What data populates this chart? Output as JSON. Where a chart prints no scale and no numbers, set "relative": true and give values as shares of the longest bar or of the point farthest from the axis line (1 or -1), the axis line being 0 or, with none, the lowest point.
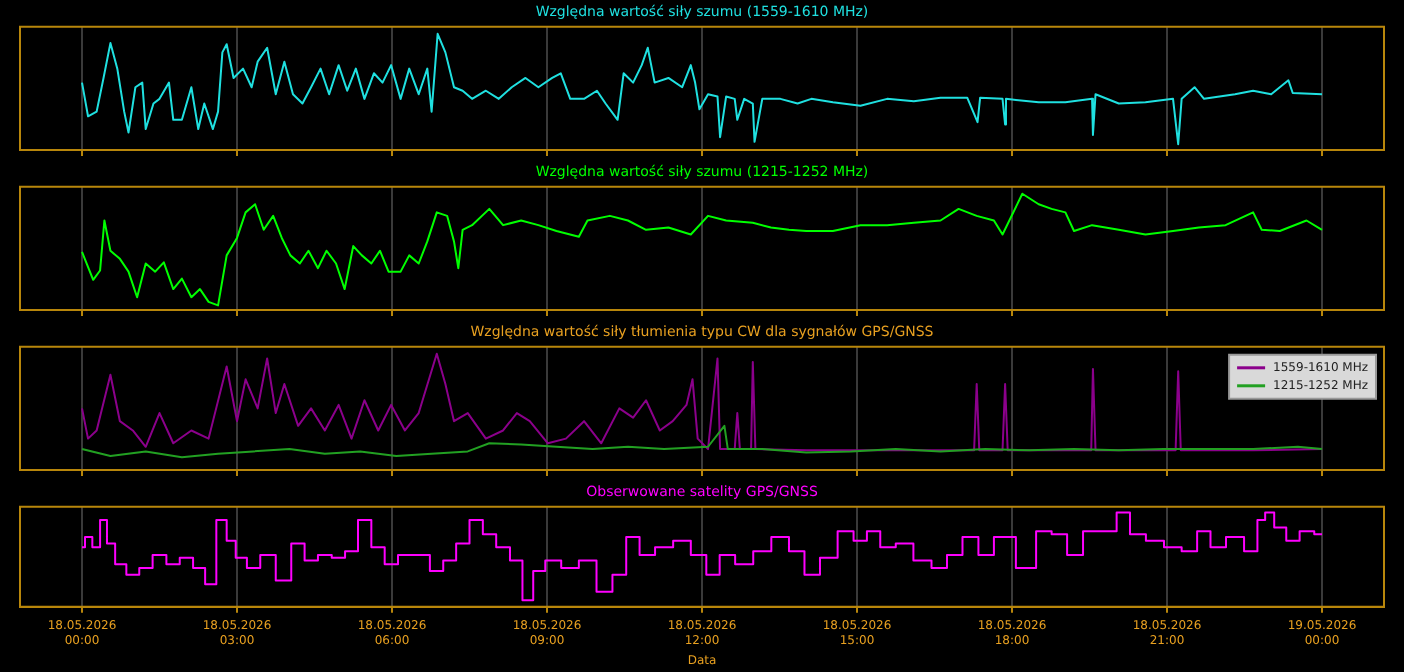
{
  "chart_data": [
    {
      "type": "line",
      "title": "Względna wartość siły szumu (1559-1610 MHz)",
      "relative": true,
      "grid": "x",
      "tick_labels": false,
      "marker": "none",
      "xlim": [
        "2026-05-17T22:48",
        "2026-05-19T01:12"
      ],
      "xticks": [
        {
          "value": "2026-05-18T00:00",
          "label": null
        },
        {
          "value": "2026-05-18T03:00",
          "label": null
        },
        {
          "value": "2026-05-18T06:00",
          "label": null
        },
        {
          "value": "2026-05-18T09:00",
          "label": null
        },
        {
          "value": "2026-05-18T12:00",
          "label": null
        },
        {
          "value": "2026-05-18T15:00",
          "label": null
        },
        {
          "value": "2026-05-18T18:00",
          "label": null
        },
        {
          "value": "2026-05-18T21:00",
          "label": null
        },
        {
          "value": "2026-05-19T00:00",
          "label": null
        }
      ],
      "series": [
        {
          "color": "#1fe0e0",
          "x": [
            "2026-05-18T00:00",
            "2026-05-18T00:07",
            "2026-05-18T00:17",
            "2026-05-18T00:25",
            "2026-05-18T00:33",
            "2026-05-18T00:41",
            "2026-05-18T00:49",
            "2026-05-18T00:54",
            "2026-05-18T01:02",
            "2026-05-18T01:10",
            "2026-05-18T01:14",
            "2026-05-18T01:23",
            "2026-05-18T01:30",
            "2026-05-18T01:41",
            "2026-05-18T01:46",
            "2026-05-18T01:56",
            "2026-05-18T02:07",
            "2026-05-18T02:15",
            "2026-05-18T02:22",
            "2026-05-18T02:32",
            "2026-05-18T02:38",
            "2026-05-18T02:43",
            "2026-05-18T02:48",
            "2026-05-18T02:56",
            "2026-05-18T03:07",
            "2026-05-18T03:17",
            "2026-05-18T03:24",
            "2026-05-18T03:35",
            "2026-05-18T03:45",
            "2026-05-18T03:55",
            "2026-05-18T04:05",
            "2026-05-18T04:16",
            "2026-05-18T04:26",
            "2026-05-18T04:37",
            "2026-05-18T04:47",
            "2026-05-18T04:58",
            "2026-05-18T05:08",
            "2026-05-18T05:18",
            "2026-05-18T05:28",
            "2026-05-18T05:39",
            "2026-05-18T05:49",
            "2026-05-18T05:59",
            "2026-05-18T06:10",
            "2026-05-18T06:20",
            "2026-05-18T06:31",
            "2026-05-18T06:41",
            "2026-05-18T06:46",
            "2026-05-18T06:53",
            "2026-05-18T07:02",
            "2026-05-18T07:12",
            "2026-05-18T07:22",
            "2026-05-18T07:33",
            "2026-05-18T07:49",
            "2026-05-18T08:04",
            "2026-05-18T08:19",
            "2026-05-18T08:35",
            "2026-05-18T08:50",
            "2026-05-18T09:06",
            "2026-05-18T09:16",
            "2026-05-18T09:27",
            "2026-05-18T09:43",
            "2026-05-18T09:58",
            "2026-05-18T10:08",
            "2026-05-18T10:22",
            "2026-05-18T10:29",
            "2026-05-18T10:40",
            "2026-05-18T10:50",
            "2026-05-18T10:57",
            "2026-05-18T11:05",
            "2026-05-18T11:21",
            "2026-05-18T11:37",
            "2026-05-18T11:47",
            "2026-05-18T11:52",
            "2026-05-18T11:57",
            "2026-05-18T12:07",
            "2026-05-18T12:18",
            "2026-05-18T12:21",
            "2026-05-18T12:28",
            "2026-05-18T12:38",
            "2026-05-18T12:41",
            "2026-05-18T12:49",
            "2026-05-18T12:59",
            "2026-05-18T13:01",
            "2026-05-18T13:10",
            "2026-05-18T13:31",
            "2026-05-18T13:51",
            "2026-05-18T14:07",
            "2026-05-18T14:32",
            "2026-05-18T15:04",
            "2026-05-18T15:35",
            "2026-05-18T16:06",
            "2026-05-18T16:37",
            "2026-05-18T17:08",
            "2026-05-18T17:20",
            "2026-05-18T17:23",
            "2026-05-18T17:49",
            "2026-05-18T17:52",
            "2026-05-18T17:53",
            "2026-05-18T18:31",
            "2026-05-18T19:02",
            "2026-05-18T19:33",
            "2026-05-18T19:34",
            "2026-05-18T19:37",
            "2026-05-18T20:04",
            "2026-05-18T20:35",
            "2026-05-18T21:07",
            "2026-05-18T21:13",
            "2026-05-18T21:17",
            "2026-05-18T21:32",
            "2026-05-18T21:43",
            "2026-05-18T22:19",
            "2026-05-18T22:40",
            "2026-05-18T23:01",
            "2026-05-18T23:21",
            "2026-05-18T23:26",
            "2026-05-19T00:00"
          ],
          "values": [
            0.58,
            0.29,
            0.33,
            0.62,
            0.92,
            0.7,
            0.33,
            0.15,
            0.54,
            0.58,
            0.18,
            0.4,
            0.44,
            0.58,
            0.26,
            0.26,
            0.54,
            0.18,
            0.4,
            0.18,
            0.33,
            0.84,
            0.91,
            0.62,
            0.7,
            0.54,
            0.76,
            0.88,
            0.48,
            0.76,
            0.48,
            0.4,
            0.54,
            0.7,
            0.48,
            0.73,
            0.51,
            0.7,
            0.44,
            0.66,
            0.58,
            0.73,
            0.44,
            0.7,
            0.48,
            0.7,
            0.33,
            1,
            0.84,
            0.54,
            0.51,
            0.44,
            0.51,
            0.44,
            0.54,
            0.62,
            0.54,
            0.62,
            0.66,
            0.44,
            0.44,
            0.51,
            0.4,
            0.26,
            0.66,
            0.58,
            0.73,
            0.88,
            0.58,
            0.62,
            0.54,
            0.73,
            0.58,
            0.35,
            0.48,
            0.46,
            0.11,
            0.46,
            0.44,
            0.26,
            0.44,
            0.4,
            0.07,
            0.44,
            0.44,
            0.4,
            0.44,
            0.41,
            0.38,
            0.44,
            0.42,
            0.45,
            0.45,
            0.24,
            0.45,
            0.44,
            0.22,
            0.44,
            0.41,
            0.41,
            0.44,
            0.13,
            0.48,
            0.4,
            0.41,
            0.44,
            0.05,
            0.44,
            0.54,
            0.44,
            0.48,
            0.51,
            0.48,
            0.6,
            0.49,
            0.48
          ]
        }
      ]
    },
    {
      "type": "line",
      "title": "Względna wartość siły szumu (1215-1252 MHz)",
      "relative": true,
      "grid": "x",
      "tick_labels": false,
      "marker": "none",
      "xlim": [
        "2026-05-17T22:48",
        "2026-05-19T01:12"
      ],
      "xticks": [
        {
          "value": "2026-05-18T00:00",
          "label": null
        },
        {
          "value": "2026-05-18T03:00",
          "label": null
        },
        {
          "value": "2026-05-18T06:00",
          "label": null
        },
        {
          "value": "2026-05-18T09:00",
          "label": null
        },
        {
          "value": "2026-05-18T12:00",
          "label": null
        },
        {
          "value": "2026-05-18T15:00",
          "label": null
        },
        {
          "value": "2026-05-18T18:00",
          "label": null
        },
        {
          "value": "2026-05-18T21:00",
          "label": null
        },
        {
          "value": "2026-05-19T00:00",
          "label": null
        }
      ],
      "series": [
        {
          "color": "#00ff00",
          "x": [
            "2026-05-18T00:00",
            "2026-05-18T00:13",
            "2026-05-18T00:21",
            "2026-05-18T00:26",
            "2026-05-18T00:33",
            "2026-05-18T00:44",
            "2026-05-18T00:54",
            "2026-05-18T01:04",
            "2026-05-18T01:14",
            "2026-05-18T01:25",
            "2026-05-18T01:35",
            "2026-05-18T01:46",
            "2026-05-18T01:56",
            "2026-05-18T02:07",
            "2026-05-18T02:17",
            "2026-05-18T02:27",
            "2026-05-18T02:38",
            "2026-05-18T02:48",
            "2026-05-18T03:00",
            "2026-05-18T03:10",
            "2026-05-18T03:21",
            "2026-05-18T03:31",
            "2026-05-18T03:42",
            "2026-05-18T03:52",
            "2026-05-18T04:02",
            "2026-05-18T04:13",
            "2026-05-18T04:23",
            "2026-05-18T04:34",
            "2026-05-18T04:44",
            "2026-05-18T04:55",
            "2026-05-18T05:05",
            "2026-05-18T05:15",
            "2026-05-18T05:25",
            "2026-05-18T05:36",
            "2026-05-18T05:46",
            "2026-05-18T05:56",
            "2026-05-18T06:10",
            "2026-05-18T06:20",
            "2026-05-18T06:31",
            "2026-05-18T06:41",
            "2026-05-18T06:52",
            "2026-05-18T07:04",
            "2026-05-18T07:12",
            "2026-05-18T07:17",
            "2026-05-18T07:22",
            "2026-05-18T07:33",
            "2026-05-18T07:53",
            "2026-05-18T08:09",
            "2026-05-18T08:30",
            "2026-05-18T08:50",
            "2026-05-18T09:11",
            "2026-05-18T09:37",
            "2026-05-18T09:47",
            "2026-05-18T10:13",
            "2026-05-18T10:34",
            "2026-05-18T10:55",
            "2026-05-18T11:21",
            "2026-05-18T11:47",
            "2026-05-18T12:07",
            "2026-05-18T12:28",
            "2026-05-18T12:59",
            "2026-05-18T13:20",
            "2026-05-18T13:41",
            "2026-05-18T14:01",
            "2026-05-18T14:32",
            "2026-05-18T15:04",
            "2026-05-18T15:35",
            "2026-05-18T16:06",
            "2026-05-18T16:37",
            "2026-05-18T16:58",
            "2026-05-18T17:19",
            "2026-05-18T17:39",
            "2026-05-18T17:49",
            "2026-05-18T18:12",
            "2026-05-18T18:31",
            "2026-05-18T18:46",
            "2026-05-18T19:02",
            "2026-05-18T19:12",
            "2026-05-18T19:33",
            "2026-05-18T20:04",
            "2026-05-18T20:35",
            "2026-05-18T21:07",
            "2026-05-18T21:37",
            "2026-05-18T22:08",
            "2026-05-18T22:40",
            "2026-05-18T22:50",
            "2026-05-18T23:11",
            "2026-05-18T23:42",
            "2026-05-19T00:00"
          ],
          "values": [
            0.5,
            0.26,
            0.34,
            0.77,
            0.51,
            0.44,
            0.33,
            0.11,
            0.4,
            0.33,
            0.41,
            0.18,
            0.27,
            0.11,
            0.18,
            0.07,
            0.04,
            0.47,
            0.62,
            0.84,
            0.91,
            0.69,
            0.81,
            0.62,
            0.47,
            0.4,
            0.51,
            0.36,
            0.51,
            0.4,
            0.18,
            0.55,
            0.47,
            0.4,
            0.51,
            0.33,
            0.33,
            0.47,
            0.4,
            0.59,
            0.84,
            0.81,
            0.59,
            0.36,
            0.69,
            0.73,
            0.87,
            0.73,
            0.77,
            0.73,
            0.68,
            0.63,
            0.77,
            0.81,
            0.77,
            0.69,
            0.71,
            0.65,
            0.81,
            0.77,
            0.75,
            0.71,
            0.69,
            0.68,
            0.68,
            0.73,
            0.73,
            0.75,
            0.77,
            0.87,
            0.81,
            0.77,
            0.65,
            1,
            0.91,
            0.87,
            0.84,
            0.68,
            0.73,
            0.69,
            0.65,
            0.68,
            0.71,
            0.73,
            0.84,
            0.69,
            0.68,
            0.77,
            0.69
          ]
        }
      ]
    },
    {
      "type": "line",
      "title": "Względna wartość siły tłumienia typu CW dla sygnałów GPS/GNSS",
      "relative": true,
      "grid": "x",
      "tick_labels": false,
      "marker": "none",
      "legend": "top right",
      "xlim": [
        "2026-05-17T22:48",
        "2026-05-19T01:12"
      ],
      "xticks": [
        {
          "value": "2026-05-18T00:00",
          "label": null
        },
        {
          "value": "2026-05-18T03:00",
          "label": null
        },
        {
          "value": "2026-05-18T06:00",
          "label": null
        },
        {
          "value": "2026-05-18T09:00",
          "label": null
        },
        {
          "value": "2026-05-18T12:00",
          "label": null
        },
        {
          "value": "2026-05-18T15:00",
          "label": null
        },
        {
          "value": "2026-05-18T18:00",
          "label": null
        },
        {
          "value": "2026-05-18T21:00",
          "label": null
        },
        {
          "value": "2026-05-19T00:00",
          "label": null
        }
      ],
      "series": [
        {
          "name": "1559-1610 MHz",
          "color": "#8b008b",
          "x": [
            "2026-05-18T00:00",
            "2026-05-18T00:07",
            "2026-05-18T00:17",
            "2026-05-18T00:33",
            "2026-05-18T00:44",
            "2026-05-18T00:59",
            "2026-05-18T01:14",
            "2026-05-18T01:30",
            "2026-05-18T01:46",
            "2026-05-18T02:07",
            "2026-05-18T02:27",
            "2026-05-18T02:48",
            "2026-05-18T03:00",
            "2026-05-18T03:10",
            "2026-05-18T03:24",
            "2026-05-18T03:35",
            "2026-05-18T03:45",
            "2026-05-18T03:55",
            "2026-05-18T04:11",
            "2026-05-18T04:26",
            "2026-05-18T04:42",
            "2026-05-18T04:58",
            "2026-05-18T05:13",
            "2026-05-18T05:28",
            "2026-05-18T05:44",
            "2026-05-18T05:59",
            "2026-05-18T06:15",
            "2026-05-18T06:31",
            "2026-05-18T06:52",
            "2026-05-18T07:02",
            "2026-05-18T07:12",
            "2026-05-18T07:28",
            "2026-05-18T07:49",
            "2026-05-18T08:09",
            "2026-05-18T08:25",
            "2026-05-18T08:40",
            "2026-05-18T09:01",
            "2026-05-18T09:22",
            "2026-05-18T09:43",
            "2026-05-18T10:03",
            "2026-05-18T10:24",
            "2026-05-18T10:40",
            "2026-05-18T10:55",
            "2026-05-18T11:11",
            "2026-05-18T11:26",
            "2026-05-18T11:42",
            "2026-05-18T11:49",
            "2026-05-18T11:55",
            "2026-05-18T12:07",
            "2026-05-18T12:18",
            "2026-05-18T12:21",
            "2026-05-18T12:38",
            "2026-05-18T12:41",
            "2026-05-18T12:44",
            "2026-05-18T12:57",
            "2026-05-18T12:59",
            "2026-05-18T13:02",
            "2026-05-18T14:01",
            "2026-05-18T15:45",
            "2026-05-18T17:16",
            "2026-05-18T17:19",
            "2026-05-18T17:22",
            "2026-05-18T17:49",
            "2026-05-18T17:52",
            "2026-05-18T17:55",
            "2026-05-18T19:32",
            "2026-05-18T19:34",
            "2026-05-18T19:37",
            "2026-05-18T21:10",
            "2026-05-18T21:13",
            "2026-05-18T21:16",
            "2026-05-18T22:40",
            "2026-05-19T00:00"
          ],
          "values": [
            0.53,
            0.27,
            0.34,
            0.82,
            0.42,
            0.34,
            0.2,
            0.49,
            0.23,
            0.34,
            0.27,
            0.89,
            0.42,
            0.78,
            0.53,
            0.96,
            0.49,
            0.74,
            0.38,
            0.53,
            0.34,
            0.56,
            0.27,
            0.6,
            0.34,
            0.56,
            0.34,
            0.49,
            1,
            0.74,
            0.42,
            0.49,
            0.27,
            0.34,
            0.49,
            0.42,
            0.23,
            0.27,
            0.42,
            0.23,
            0.53,
            0.45,
            0.6,
            0.34,
            0.42,
            0.56,
            0.78,
            0.27,
            0.18,
            0.96,
            0.18,
            0.18,
            0.49,
            0.18,
            0.18,
            0.93,
            0.18,
            0.17,
            0.17,
            0.17,
            0.74,
            0.17,
            0.17,
            0.74,
            0.17,
            0.17,
            0.87,
            0.17,
            0.17,
            0.85,
            0.17,
            0.17,
            0.18
          ]
        },
        {
          "name": "1215-1252 MHz",
          "color": "#22a022",
          "x": [
            "2026-05-18T00:00",
            "2026-05-18T00:33",
            "2026-05-18T01:14",
            "2026-05-18T01:56",
            "2026-05-18T02:38",
            "2026-05-18T03:19",
            "2026-05-18T04:01",
            "2026-05-18T04:42",
            "2026-05-18T05:23",
            "2026-05-18T06:05",
            "2026-05-18T06:46",
            "2026-05-18T07:28",
            "2026-05-18T07:53",
            "2026-05-18T08:30",
            "2026-05-18T09:11",
            "2026-05-18T09:53",
            "2026-05-18T10:34",
            "2026-05-18T11:16",
            "2026-05-18T12:07",
            "2026-05-18T12:26",
            "2026-05-18T12:30",
            "2026-05-18T13:10",
            "2026-05-18T14:01",
            "2026-05-18T14:53",
            "2026-05-18T15:45",
            "2026-05-18T16:37",
            "2026-05-18T17:29",
            "2026-05-18T18:20",
            "2026-05-18T19:12",
            "2026-05-18T20:04",
            "2026-05-18T20:56",
            "2026-05-18T21:48",
            "2026-05-18T22:40",
            "2026-05-18T23:32",
            "2026-05-19T00:00"
          ],
          "values": [
            0.18,
            0.12,
            0.16,
            0.11,
            0.14,
            0.16,
            0.18,
            0.14,
            0.16,
            0.12,
            0.14,
            0.16,
            0.23,
            0.22,
            0.2,
            0.18,
            0.2,
            0.18,
            0.2,
            0.38,
            0.18,
            0.18,
            0.15,
            0.16,
            0.18,
            0.16,
            0.18,
            0.17,
            0.18,
            0.17,
            0.18,
            0.18,
            0.18,
            0.2,
            0.18
          ]
        }
      ]
    },
    {
      "type": "step",
      "title": "Obserwowane satelity GPS/GNSS",
      "xlabel": "Data",
      "relative": true,
      "grid": "x",
      "tick_labels": "x",
      "marker": "none",
      "xlim": [
        "2026-05-17T22:48",
        "2026-05-19T01:12"
      ],
      "xticks": [
        {
          "value": "2026-05-18T00:00",
          "label": "18.05.2026\n00:00"
        },
        {
          "value": "2026-05-18T03:00",
          "label": "18.05.2026\n03:00"
        },
        {
          "value": "2026-05-18T06:00",
          "label": "18.05.2026\n06:00"
        },
        {
          "value": "2026-05-18T09:00",
          "label": "18.05.2026\n09:00"
        },
        {
          "value": "2026-05-18T12:00",
          "label": "18.05.2026\n12:00"
        },
        {
          "value": "2026-05-18T15:00",
          "label": "18.05.2026\n15:00"
        },
        {
          "value": "2026-05-18T18:00",
          "label": "18.05.2026\n18:00"
        },
        {
          "value": "2026-05-18T21:00",
          "label": "18.05.2026\n21:00"
        },
        {
          "value": "2026-05-19T00:00",
          "label": "19.05.2026\n00:00"
        }
      ],
      "series": [
        {
          "color": "#ff00ff",
          "x": [
            "2026-05-18T00:00",
            "2026-05-18T00:07",
            "2026-05-18T00:17",
            "2026-05-18T00:25",
            "2026-05-18T00:33",
            "2026-05-18T00:44",
            "2026-05-18T00:59",
            "2026-05-18T01:14",
            "2026-05-18T01:30",
            "2026-05-18T01:46",
            "2026-05-18T02:01",
            "2026-05-18T02:17",
            "2026-05-18T02:29",
            "2026-05-18T02:43",
            "2026-05-18T02:53",
            "2026-05-18T03:04",
            "2026-05-18T03:19",
            "2026-05-18T03:35",
            "2026-05-18T03:55",
            "2026-05-18T04:11",
            "2026-05-18T04:26",
            "2026-05-18T04:42",
            "2026-05-18T04:58",
            "2026-05-18T05:13",
            "2026-05-18T05:28",
            "2026-05-18T05:44",
            "2026-05-18T05:59",
            "2026-05-18T06:15",
            "2026-05-18T06:36",
            "2026-05-18T06:52",
            "2026-05-18T07:07",
            "2026-05-18T07:22",
            "2026-05-18T07:38",
            "2026-05-18T07:53",
            "2026-05-18T08:09",
            "2026-05-18T08:25",
            "2026-05-18T08:38",
            "2026-05-18T08:50",
            "2026-05-18T09:06",
            "2026-05-18T09:27",
            "2026-05-18T09:47",
            "2026-05-18T10:08",
            "2026-05-18T10:24",
            "2026-05-18T10:40",
            "2026-05-18T10:55",
            "2026-05-18T11:16",
            "2026-05-18T11:37",
            "2026-05-18T11:57",
            "2026-05-18T12:13",
            "2026-05-18T12:28",
            "2026-05-18T12:49",
            "2026-05-18T13:10",
            "2026-05-18T13:31",
            "2026-05-18T13:51",
            "2026-05-18T14:07",
            "2026-05-18T14:27",
            "2026-05-18T14:48",
            "2026-05-18T15:04",
            "2026-05-18T15:19",
            "2026-05-18T15:35",
            "2026-05-18T15:55",
            "2026-05-18T16:16",
            "2026-05-18T16:37",
            "2026-05-18T16:52",
            "2026-05-18T17:13",
            "2026-05-18T17:29",
            "2026-05-18T17:49",
            "2026-05-18T18:20",
            "2026-05-18T18:36",
            "2026-05-18T18:56",
            "2026-05-18T19:12",
            "2026-05-18T19:33",
            "2026-05-18T19:54",
            "2026-05-18T20:09",
            "2026-05-18T20:25",
            "2026-05-18T20:46",
            "2026-05-18T21:07",
            "2026-05-18T21:27",
            "2026-05-18T21:43",
            "2026-05-18T21:58",
            "2026-05-18T22:19",
            "2026-05-18T22:40",
            "2026-05-18T22:50",
            "2026-05-18T22:58",
            "2026-05-18T23:11",
            "2026-05-18T23:26",
            "2026-05-18T23:42",
            "2026-05-19T00:00"
          ],
          "values": [
            0.63,
            0.74,
            0.63,
            0.92,
            0.67,
            0.45,
            0.34,
            0.41,
            0.55,
            0.45,
            0.52,
            0.41,
            0.24,
            0.92,
            0.7,
            0.52,
            0.41,
            0.55,
            0.28,
            0.67,
            0.49,
            0.55,
            0.52,
            0.59,
            0.92,
            0.63,
            0.45,
            0.55,
            0.55,
            0.38,
            0.49,
            0.67,
            0.92,
            0.77,
            0.63,
            0.49,
            0.07,
            0.38,
            0.49,
            0.41,
            0.49,
            0.16,
            0.34,
            0.74,
            0.55,
            0.63,
            0.7,
            0.55,
            0.34,
            0.55,
            0.45,
            0.59,
            0.74,
            0.59,
            0.34,
            0.52,
            0.8,
            0.7,
            0.8,
            0.63,
            0.67,
            0.49,
            0.41,
            0.55,
            0.74,
            0.55,
            0.74,
            0.41,
            0.8,
            0.77,
            0.55,
            0.8,
            0.8,
            1,
            0.77,
            0.7,
            0.63,
            0.59,
            0.8,
            0.63,
            0.74,
            0.59,
            0.92,
            1,
            0.84,
            0.7,
            0.8,
            0.77
          ]
        }
      ]
    }
  ]
}
